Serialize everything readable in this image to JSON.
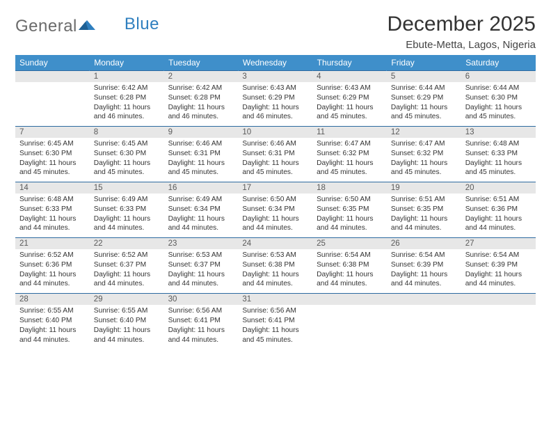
{
  "logo": {
    "text1": "General",
    "text2": "Blue"
  },
  "title": "December 2025",
  "location": "Ebute-Metta, Lagos, Nigeria",
  "colors": {
    "header_bg": "#3f8fca",
    "header_text": "#ffffff",
    "daynum_bg": "#e7e7e7",
    "row_divider": "#2c6aa0",
    "body_text": "#333333",
    "logo_gray": "#6b6b6b",
    "logo_blue": "#2f7fbf"
  },
  "weekdays": [
    "Sunday",
    "Monday",
    "Tuesday",
    "Wednesday",
    "Thursday",
    "Friday",
    "Saturday"
  ],
  "weeks": [
    {
      "nums": [
        "",
        "1",
        "2",
        "3",
        "4",
        "5",
        "6"
      ],
      "cells": [
        {},
        {
          "sunrise": "Sunrise: 6:42 AM",
          "sunset": "Sunset: 6:28 PM",
          "day1": "Daylight: 11 hours",
          "day2": "and 46 minutes."
        },
        {
          "sunrise": "Sunrise: 6:42 AM",
          "sunset": "Sunset: 6:28 PM",
          "day1": "Daylight: 11 hours",
          "day2": "and 46 minutes."
        },
        {
          "sunrise": "Sunrise: 6:43 AM",
          "sunset": "Sunset: 6:29 PM",
          "day1": "Daylight: 11 hours",
          "day2": "and 46 minutes."
        },
        {
          "sunrise": "Sunrise: 6:43 AM",
          "sunset": "Sunset: 6:29 PM",
          "day1": "Daylight: 11 hours",
          "day2": "and 45 minutes."
        },
        {
          "sunrise": "Sunrise: 6:44 AM",
          "sunset": "Sunset: 6:29 PM",
          "day1": "Daylight: 11 hours",
          "day2": "and 45 minutes."
        },
        {
          "sunrise": "Sunrise: 6:44 AM",
          "sunset": "Sunset: 6:30 PM",
          "day1": "Daylight: 11 hours",
          "day2": "and 45 minutes."
        }
      ]
    },
    {
      "nums": [
        "7",
        "8",
        "9",
        "10",
        "11",
        "12",
        "13"
      ],
      "cells": [
        {
          "sunrise": "Sunrise: 6:45 AM",
          "sunset": "Sunset: 6:30 PM",
          "day1": "Daylight: 11 hours",
          "day2": "and 45 minutes."
        },
        {
          "sunrise": "Sunrise: 6:45 AM",
          "sunset": "Sunset: 6:30 PM",
          "day1": "Daylight: 11 hours",
          "day2": "and 45 minutes."
        },
        {
          "sunrise": "Sunrise: 6:46 AM",
          "sunset": "Sunset: 6:31 PM",
          "day1": "Daylight: 11 hours",
          "day2": "and 45 minutes."
        },
        {
          "sunrise": "Sunrise: 6:46 AM",
          "sunset": "Sunset: 6:31 PM",
          "day1": "Daylight: 11 hours",
          "day2": "and 45 minutes."
        },
        {
          "sunrise": "Sunrise: 6:47 AM",
          "sunset": "Sunset: 6:32 PM",
          "day1": "Daylight: 11 hours",
          "day2": "and 45 minutes."
        },
        {
          "sunrise": "Sunrise: 6:47 AM",
          "sunset": "Sunset: 6:32 PM",
          "day1": "Daylight: 11 hours",
          "day2": "and 45 minutes."
        },
        {
          "sunrise": "Sunrise: 6:48 AM",
          "sunset": "Sunset: 6:33 PM",
          "day1": "Daylight: 11 hours",
          "day2": "and 45 minutes."
        }
      ]
    },
    {
      "nums": [
        "14",
        "15",
        "16",
        "17",
        "18",
        "19",
        "20"
      ],
      "cells": [
        {
          "sunrise": "Sunrise: 6:48 AM",
          "sunset": "Sunset: 6:33 PM",
          "day1": "Daylight: 11 hours",
          "day2": "and 44 minutes."
        },
        {
          "sunrise": "Sunrise: 6:49 AM",
          "sunset": "Sunset: 6:33 PM",
          "day1": "Daylight: 11 hours",
          "day2": "and 44 minutes."
        },
        {
          "sunrise": "Sunrise: 6:49 AM",
          "sunset": "Sunset: 6:34 PM",
          "day1": "Daylight: 11 hours",
          "day2": "and 44 minutes."
        },
        {
          "sunrise": "Sunrise: 6:50 AM",
          "sunset": "Sunset: 6:34 PM",
          "day1": "Daylight: 11 hours",
          "day2": "and 44 minutes."
        },
        {
          "sunrise": "Sunrise: 6:50 AM",
          "sunset": "Sunset: 6:35 PM",
          "day1": "Daylight: 11 hours",
          "day2": "and 44 minutes."
        },
        {
          "sunrise": "Sunrise: 6:51 AM",
          "sunset": "Sunset: 6:35 PM",
          "day1": "Daylight: 11 hours",
          "day2": "and 44 minutes."
        },
        {
          "sunrise": "Sunrise: 6:51 AM",
          "sunset": "Sunset: 6:36 PM",
          "day1": "Daylight: 11 hours",
          "day2": "and 44 minutes."
        }
      ]
    },
    {
      "nums": [
        "21",
        "22",
        "23",
        "24",
        "25",
        "26",
        "27"
      ],
      "cells": [
        {
          "sunrise": "Sunrise: 6:52 AM",
          "sunset": "Sunset: 6:36 PM",
          "day1": "Daylight: 11 hours",
          "day2": "and 44 minutes."
        },
        {
          "sunrise": "Sunrise: 6:52 AM",
          "sunset": "Sunset: 6:37 PM",
          "day1": "Daylight: 11 hours",
          "day2": "and 44 minutes."
        },
        {
          "sunrise": "Sunrise: 6:53 AM",
          "sunset": "Sunset: 6:37 PM",
          "day1": "Daylight: 11 hours",
          "day2": "and 44 minutes."
        },
        {
          "sunrise": "Sunrise: 6:53 AM",
          "sunset": "Sunset: 6:38 PM",
          "day1": "Daylight: 11 hours",
          "day2": "and 44 minutes."
        },
        {
          "sunrise": "Sunrise: 6:54 AM",
          "sunset": "Sunset: 6:38 PM",
          "day1": "Daylight: 11 hours",
          "day2": "and 44 minutes."
        },
        {
          "sunrise": "Sunrise: 6:54 AM",
          "sunset": "Sunset: 6:39 PM",
          "day1": "Daylight: 11 hours",
          "day2": "and 44 minutes."
        },
        {
          "sunrise": "Sunrise: 6:54 AM",
          "sunset": "Sunset: 6:39 PM",
          "day1": "Daylight: 11 hours",
          "day2": "and 44 minutes."
        }
      ]
    },
    {
      "nums": [
        "28",
        "29",
        "30",
        "31",
        "",
        "",
        ""
      ],
      "cells": [
        {
          "sunrise": "Sunrise: 6:55 AM",
          "sunset": "Sunset: 6:40 PM",
          "day1": "Daylight: 11 hours",
          "day2": "and 44 minutes."
        },
        {
          "sunrise": "Sunrise: 6:55 AM",
          "sunset": "Sunset: 6:40 PM",
          "day1": "Daylight: 11 hours",
          "day2": "and 44 minutes."
        },
        {
          "sunrise": "Sunrise: 6:56 AM",
          "sunset": "Sunset: 6:41 PM",
          "day1": "Daylight: 11 hours",
          "day2": "and 44 minutes."
        },
        {
          "sunrise": "Sunrise: 6:56 AM",
          "sunset": "Sunset: 6:41 PM",
          "day1": "Daylight: 11 hours",
          "day2": "and 45 minutes."
        },
        {},
        {},
        {}
      ]
    }
  ]
}
